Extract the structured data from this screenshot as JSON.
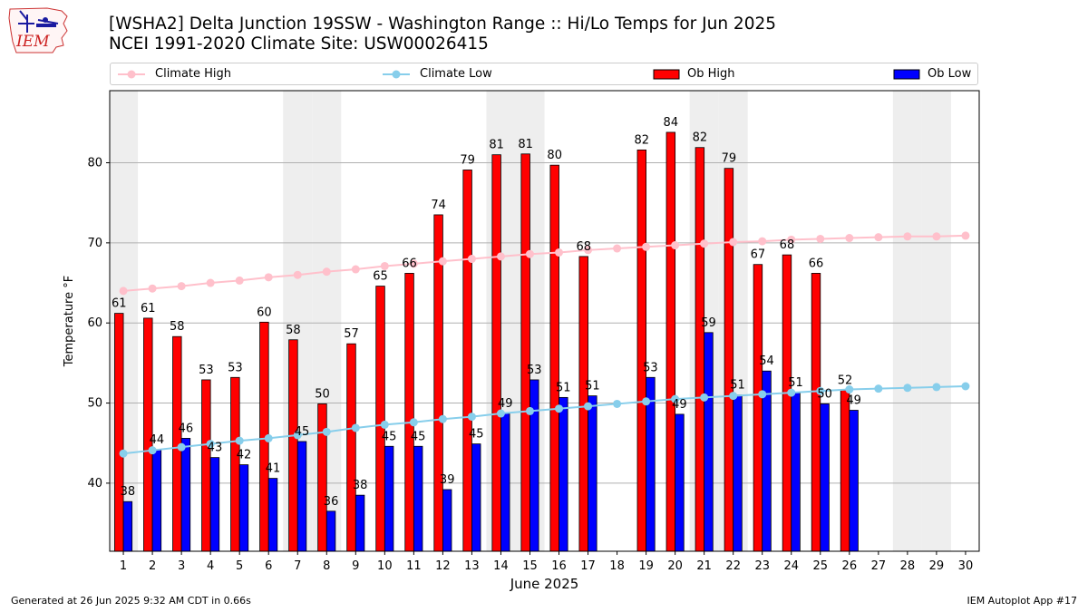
{
  "header": {
    "logo_text": "IEM",
    "title_line1": "[WSHA2] Delta Junction 19SSW - Washington Range :: Hi/Lo Temps for Jun 2025",
    "title_line2": "NCEI 1991-2020 Climate Site: USW00026415"
  },
  "footer": {
    "generated": "Generated at 26 Jun 2025 9:32 AM CDT in 0.66s",
    "app": "IEM Autoplot App #17"
  },
  "colors": {
    "climate_high": "#ffc0cb",
    "climate_low": "#87ceeb",
    "ob_high": "#ff0000",
    "ob_low": "#0000ff",
    "weekend_shade": "#eeeeee",
    "grid": "#b0b0b0"
  },
  "chart_data": {
    "type": "bar",
    "title": "[WSHA2] Delta Junction 19SSW - Washington Range :: Hi/Lo Temps for Jun 2025",
    "subtitle": "NCEI 1991-2020 Climate Site: USW00026415",
    "xlabel": "June 2025",
    "ylabel": "Temperature °F",
    "ylim": [
      31.5,
      89
    ],
    "yticks": [
      40,
      50,
      60,
      70,
      80
    ],
    "grid": true,
    "legend_placement": "top",
    "x": [
      1,
      2,
      3,
      4,
      5,
      6,
      7,
      8,
      9,
      10,
      11,
      12,
      13,
      14,
      15,
      16,
      17,
      18,
      19,
      20,
      21,
      22,
      23,
      24,
      25,
      26,
      27,
      28,
      29,
      30
    ],
    "shaded_weekend_days": [
      1,
      7,
      8,
      14,
      15,
      21,
      22,
      28,
      29
    ],
    "series": [
      {
        "name": "Climate High",
        "kind": "line",
        "values": [
          64.0,
          64.3,
          64.6,
          65.0,
          65.3,
          65.7,
          66.0,
          66.4,
          66.7,
          67.1,
          67.4,
          67.7,
          68.0,
          68.3,
          68.6,
          68.8,
          69.1,
          69.3,
          69.5,
          69.7,
          69.9,
          70.1,
          70.2,
          70.4,
          70.5,
          70.6,
          70.7,
          70.8,
          70.8,
          70.9
        ]
      },
      {
        "name": "Climate Low",
        "kind": "line",
        "values": [
          43.7,
          44.1,
          44.5,
          44.9,
          45.3,
          45.6,
          46.0,
          46.4,
          46.9,
          47.3,
          47.6,
          48.0,
          48.3,
          48.7,
          49.0,
          49.3,
          49.6,
          49.9,
          50.2,
          50.5,
          50.7,
          50.9,
          51.1,
          51.3,
          51.5,
          51.7,
          51.8,
          51.9,
          52.0,
          52.1
        ]
      },
      {
        "name": "Ob High",
        "kind": "bar",
        "values": [
          61,
          61,
          58,
          53,
          53,
          60,
          58,
          50,
          57,
          65,
          66,
          74,
          79,
          81,
          81,
          80,
          68,
          null,
          82,
          84,
          82,
          79,
          67,
          68,
          66,
          52,
          null,
          null,
          null,
          null
        ]
      },
      {
        "name": "Ob Low",
        "kind": "bar",
        "values": [
          38,
          44,
          46,
          43,
          42,
          41,
          45,
          36,
          38,
          45,
          45,
          39,
          45,
          49,
          53,
          51,
          51,
          null,
          53,
          49,
          59,
          51,
          54,
          51,
          50,
          49,
          null,
          null,
          null,
          null
        ]
      }
    ],
    "bar_tops": {
      "Ob High": [
        61.2,
        60.6,
        58.3,
        52.9,
        53.2,
        60.1,
        57.9,
        49.9,
        57.4,
        64.6,
        66.2,
        73.5,
        79.1,
        81.0,
        81.1,
        79.7,
        68.3,
        null,
        81.6,
        83.8,
        81.9,
        79.3,
        67.3,
        68.5,
        66.2,
        51.6,
        null,
        null,
        null,
        null
      ],
      "Ob Low": [
        37.7,
        44.2,
        45.6,
        43.2,
        42.3,
        40.6,
        45.2,
        36.5,
        38.5,
        44.6,
        44.6,
        39.2,
        44.9,
        48.7,
        52.9,
        50.7,
        50.9,
        null,
        53.2,
        48.6,
        58.8,
        51.0,
        54.0,
        51.3,
        49.9,
        49.1,
        null,
        null,
        null,
        null
      ]
    }
  }
}
